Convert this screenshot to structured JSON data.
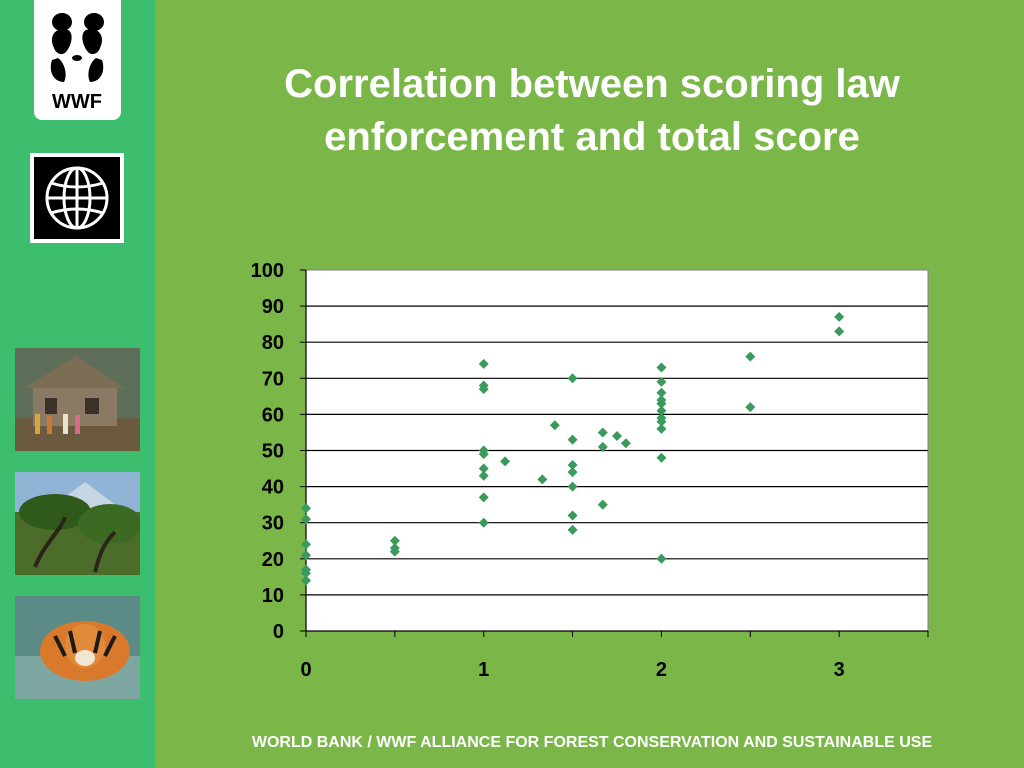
{
  "slide": {
    "title_line1": "Correlation between scoring law",
    "title_line2": "enforcement and total score",
    "footer": "WORLD BANK / WWF ALLIANCE FOR FOREST CONSERVATION AND SUSTAINABLE USE",
    "logo_text": "WWF"
  },
  "colors": {
    "background": "#7ab648",
    "sidebar": "#3dbd6e",
    "marker": "#3a9a5c",
    "plot_area": "#ffffff"
  },
  "chart_data": {
    "type": "scatter",
    "title": "",
    "xlabel": "",
    "ylabel": "",
    "xlim": [
      0,
      3.5
    ],
    "ylim": [
      0,
      100
    ],
    "x_ticks": [
      "0",
      "1",
      "2",
      "3"
    ],
    "y_ticks": [
      "0",
      "10",
      "20",
      "30",
      "40",
      "50",
      "60",
      "70",
      "80",
      "90",
      "100"
    ],
    "grid": "horizontal",
    "legend": "none",
    "series": [
      {
        "points": [
          [
            0,
            34
          ],
          [
            0,
            31
          ],
          [
            0,
            24
          ],
          [
            0,
            21
          ],
          [
            0,
            17
          ],
          [
            0,
            16
          ],
          [
            0,
            14
          ],
          [
            0.5,
            25
          ],
          [
            0.5,
            23
          ],
          [
            0.5,
            22
          ],
          [
            1,
            74
          ],
          [
            1,
            68
          ],
          [
            1,
            67
          ],
          [
            1,
            50
          ],
          [
            1,
            49
          ],
          [
            1,
            45
          ],
          [
            1,
            43
          ],
          [
            1,
            37
          ],
          [
            1,
            30
          ],
          [
            1.12,
            47
          ],
          [
            1.33,
            42
          ],
          [
            1.4,
            57
          ],
          [
            1.5,
            70
          ],
          [
            1.5,
            53
          ],
          [
            1.5,
            46
          ],
          [
            1.5,
            44
          ],
          [
            1.5,
            40
          ],
          [
            1.5,
            32
          ],
          [
            1.5,
            28
          ],
          [
            1.67,
            55
          ],
          [
            1.67,
            51
          ],
          [
            1.67,
            35
          ],
          [
            1.75,
            54
          ],
          [
            1.8,
            52
          ],
          [
            2,
            73
          ],
          [
            2,
            69
          ],
          [
            2,
            66
          ],
          [
            2,
            64
          ],
          [
            2,
            63
          ],
          [
            2,
            61
          ],
          [
            2,
            59
          ],
          [
            2,
            58
          ],
          [
            2,
            56
          ],
          [
            2,
            48
          ],
          [
            2,
            20
          ],
          [
            2.5,
            76
          ],
          [
            2.5,
            62
          ],
          [
            3,
            87
          ],
          [
            3,
            83
          ]
        ]
      }
    ]
  }
}
